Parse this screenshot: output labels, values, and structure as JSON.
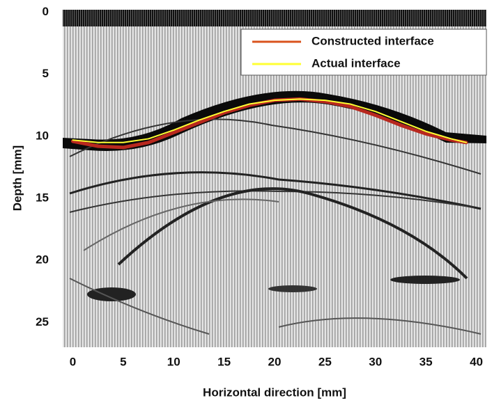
{
  "chart_data": {
    "type": "line",
    "x_label": "Horizontal direction [mm]",
    "y_label": "Depth [mm]",
    "xlim": [
      -1,
      41
    ],
    "ylim": [
      -0.2,
      27
    ],
    "y_inverted": true,
    "xticks": [
      0,
      5,
      10,
      15,
      20,
      25,
      30,
      35,
      40
    ],
    "yticks": [
      0,
      5,
      10,
      15,
      20,
      25
    ],
    "grid": false,
    "legend": "upper right",
    "x": [
      0,
      2.5,
      5,
      7.5,
      10,
      12.5,
      15,
      17.5,
      20,
      22.5,
      25,
      27.5,
      30,
      32.5,
      35,
      37.5,
      39
    ],
    "series": [
      {
        "name": "Constructed interface",
        "color": "#b8281e",
        "legend_color": "#d9531e",
        "values": [
          10.4,
          10.8,
          10.9,
          10.5,
          9.7,
          8.9,
          8.1,
          7.5,
          7.1,
          7.0,
          7.2,
          7.6,
          8.3,
          9.1,
          9.8,
          10.3,
          10.5
        ]
      },
      {
        "name": "Actual  interface",
        "color": "#ffff33",
        "legend_color": "#ffff33",
        "values": [
          10.3,
          10.5,
          10.5,
          10.2,
          9.5,
          8.7,
          8.0,
          7.4,
          7.1,
          7.0,
          7.1,
          7.4,
          8.0,
          8.8,
          9.6,
          10.2,
          10.5
        ]
      }
    ]
  }
}
